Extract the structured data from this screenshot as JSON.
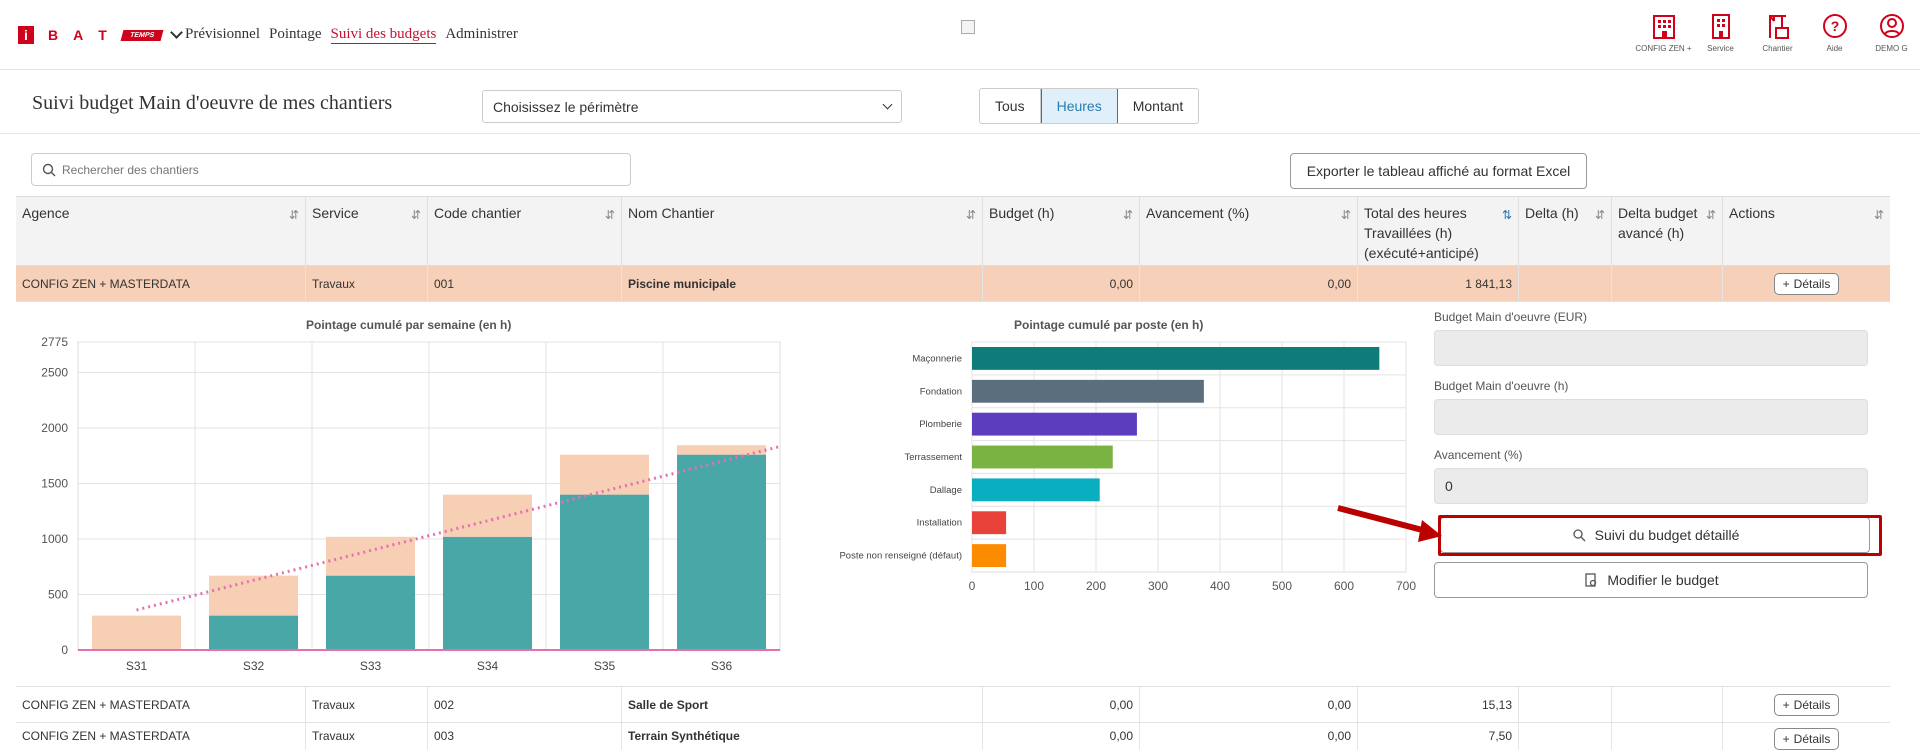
{
  "topbar": {
    "logo_i": "i",
    "logo_letters": [
      "B",
      "A",
      "T"
    ],
    "logo_badge": "TEMPS",
    "nav": [
      "Prévisionnel",
      "Pointage",
      "Suivi des budgets",
      "Administrer"
    ],
    "active_nav": "Suivi des budgets",
    "icons": [
      {
        "label": "CONFIG ZEN +",
        "icon": "building-icon"
      },
      {
        "label": "Service",
        "icon": "office-icon"
      },
      {
        "label": "Chantier",
        "icon": "crane-icon"
      },
      {
        "label": "Aide",
        "icon": "help-icon"
      },
      {
        "label": "DEMO G",
        "icon": "user-icon"
      }
    ],
    "brand_color": "#d0021b"
  },
  "page": {
    "title": "Suivi budget Main d'oeuvre de mes chantiers",
    "scope_select": "Choisissez le périmètre",
    "segments": [
      "Tous",
      "Heures",
      "Montant"
    ],
    "active_segment": "Heures",
    "search_placeholder": "Rechercher des chantiers",
    "export_label": "Exporter le tableau affiché au format Excel"
  },
  "table": {
    "headers": [
      "Agence",
      "Service",
      "Code chantier",
      "Nom Chantier",
      "Budget (h)",
      "Avancement (%)",
      "Total des heures Travaillées (h) (exécuté+anticipé)",
      "Delta (h)",
      "Delta budget avancé (h)",
      "Actions"
    ],
    "details_label": "Détails",
    "rows": [
      {
        "agence": "CONFIG ZEN + MASTERDATA",
        "service": "Travaux",
        "code": "001",
        "nom": "Piscine municipale",
        "budget": "0,00",
        "avancement": "0,00",
        "total": "1 841,13",
        "delta": "",
        "delta_budget": ""
      },
      {
        "agence": "CONFIG ZEN + MASTERDATA",
        "service": "Travaux",
        "code": "002",
        "nom": "Salle de Sport",
        "budget": "0,00",
        "avancement": "0,00",
        "total": "15,13",
        "delta": "",
        "delta_budget": ""
      },
      {
        "agence": "CONFIG ZEN + MASTERDATA",
        "service": "Travaux",
        "code": "003",
        "nom": "Terrain Synthétique",
        "budget": "0,00",
        "avancement": "0,00",
        "total": "7,50",
        "delta": "",
        "delta_budget": ""
      }
    ]
  },
  "detail": {
    "budget_eur_label": "Budget Main d'oeuvre (EUR)",
    "budget_eur_value": "",
    "budget_h_label": "Budget Main d'oeuvre (h)",
    "budget_h_value": "",
    "avancement_label": "Avancement (%)",
    "avancement_value": "0",
    "btn_suivi": "Suivi du budget détaillé",
    "btn_modifier": "Modifier le budget"
  },
  "chart_data": [
    {
      "type": "bar",
      "title": "Pointage cumulé par semaine (en h)",
      "categories": [
        "S31",
        "S32",
        "S33",
        "S34",
        "S35",
        "S36"
      ],
      "series": [
        {
          "values": [
            0,
            310,
            670,
            1020,
            1400,
            1760
          ],
          "color": "#4aa7a8"
        },
        {
          "values": [
            310,
            360,
            350,
            380,
            360,
            85
          ],
          "color": "#f6cfb5"
        }
      ],
      "stacked": true,
      "trend_line": {
        "x": [
          "S31",
          "S36"
        ],
        "y": [
          360,
          1700
        ],
        "color": "#e66fb0",
        "style": "dotted"
      },
      "ylim": [
        0,
        2775
      ],
      "yticks": [
        0,
        500,
        1000,
        1500,
        2000,
        2500,
        2775
      ],
      "grid": true
    },
    {
      "type": "bar",
      "orientation": "horizontal",
      "title": "Pointage cumulé par poste (en h)",
      "categories": [
        "Maçonnerie",
        "Fondation",
        "Plomberie",
        "Terrassement",
        "Dallage",
        "Installation",
        "Poste non renseigné (défaut)"
      ],
      "values": [
        657,
        374,
        266,
        227,
        206,
        55,
        55
      ],
      "colors": [
        "#0f7c79",
        "#5a6e7e",
        "#5c3dbd",
        "#7bb342",
        "#0aaec1",
        "#e8423b",
        "#fb8c00"
      ],
      "xlim": [
        0,
        700
      ],
      "xticks": [
        0,
        100,
        200,
        300,
        400,
        500,
        600,
        700
      ],
      "grid": true
    }
  ]
}
